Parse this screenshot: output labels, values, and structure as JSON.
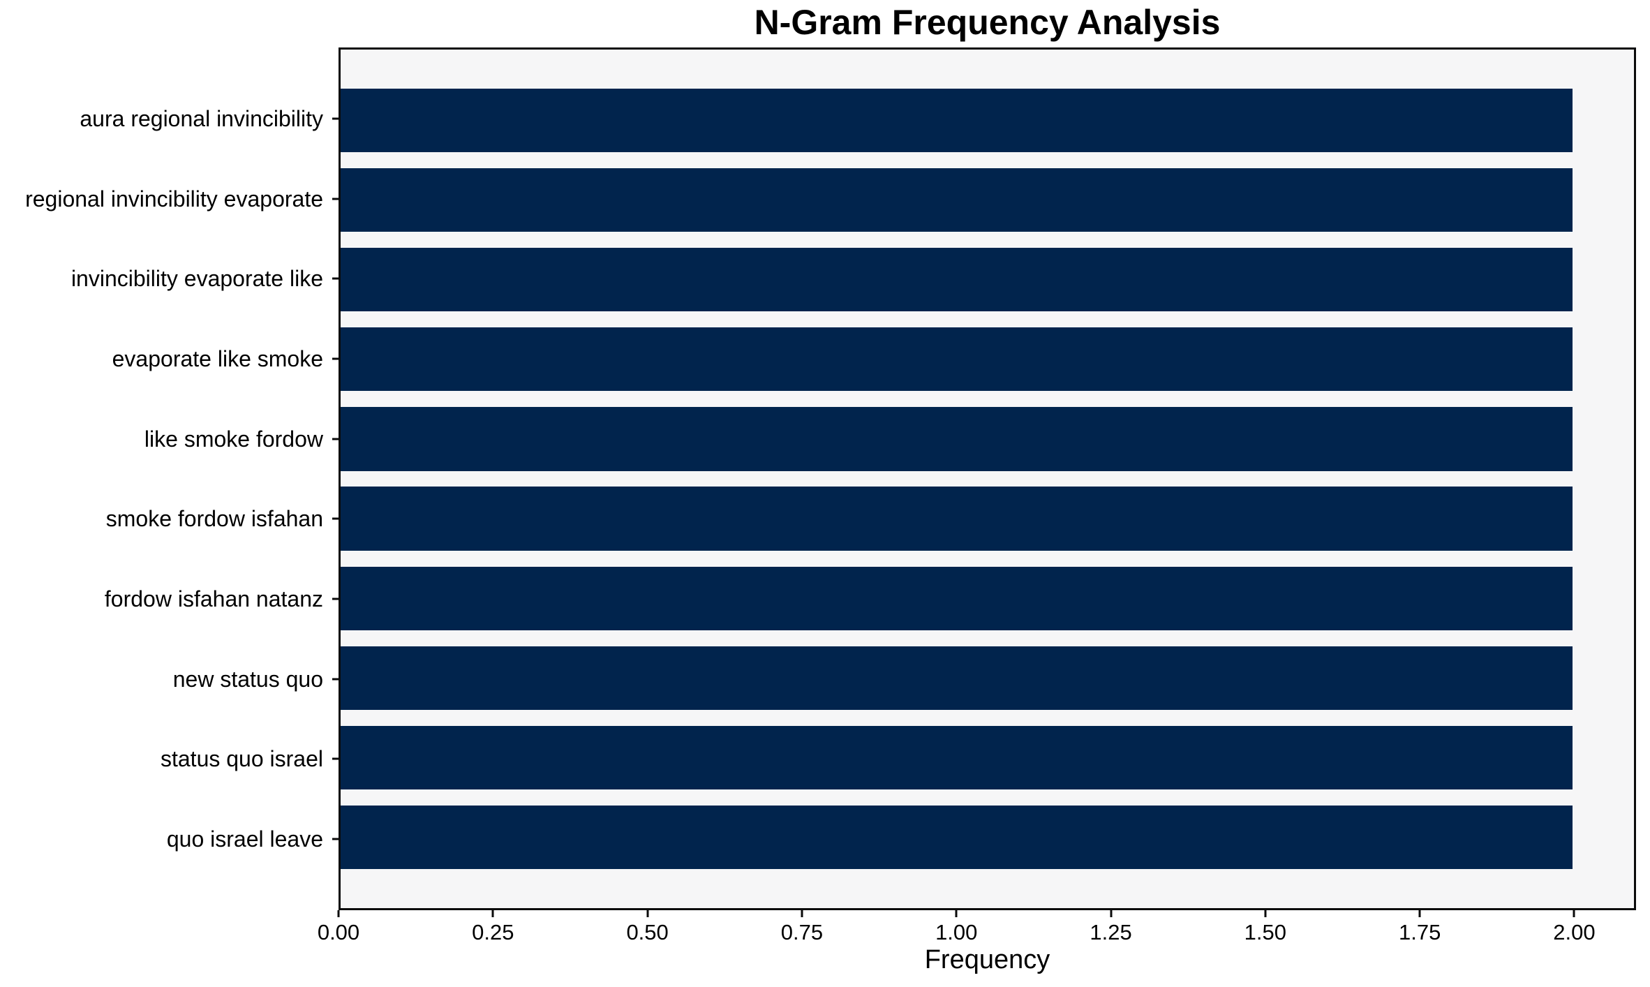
{
  "title": "N-Gram Frequency Analysis",
  "colors": {
    "bar": "#01244d",
    "plot_background": "#f6f6f7",
    "figure_background": "#ffffff",
    "axis": "#0b0b0b",
    "text": "#000000"
  },
  "chart_data": {
    "type": "bar",
    "orientation": "horizontal",
    "title": "N-Gram Frequency Analysis",
    "xlabel": "Frequency",
    "ylabel": "",
    "categories": [
      "aura regional invincibility",
      "regional invincibility evaporate",
      "invincibility evaporate like",
      "evaporate like smoke",
      "like smoke fordow",
      "smoke fordow isfahan",
      "fordow isfahan natanz",
      "new status quo",
      "status quo israel",
      "quo israel leave"
    ],
    "values": [
      2,
      2,
      2,
      2,
      2,
      2,
      2,
      2,
      2,
      2
    ],
    "xlim": [
      0,
      2.1
    ],
    "x_ticks": [
      {
        "value": 0.0,
        "label": "0.00"
      },
      {
        "value": 0.25,
        "label": "0.25"
      },
      {
        "value": 0.5,
        "label": "0.50"
      },
      {
        "value": 0.75,
        "label": "0.75"
      },
      {
        "value": 1.0,
        "label": "1.00"
      },
      {
        "value": 1.25,
        "label": "1.25"
      },
      {
        "value": 1.5,
        "label": "1.50"
      },
      {
        "value": 1.75,
        "label": "1.75"
      },
      {
        "value": 2.0,
        "label": "2.00"
      }
    ],
    "grid": false,
    "legend": false,
    "bar_color": "#01244d"
  }
}
